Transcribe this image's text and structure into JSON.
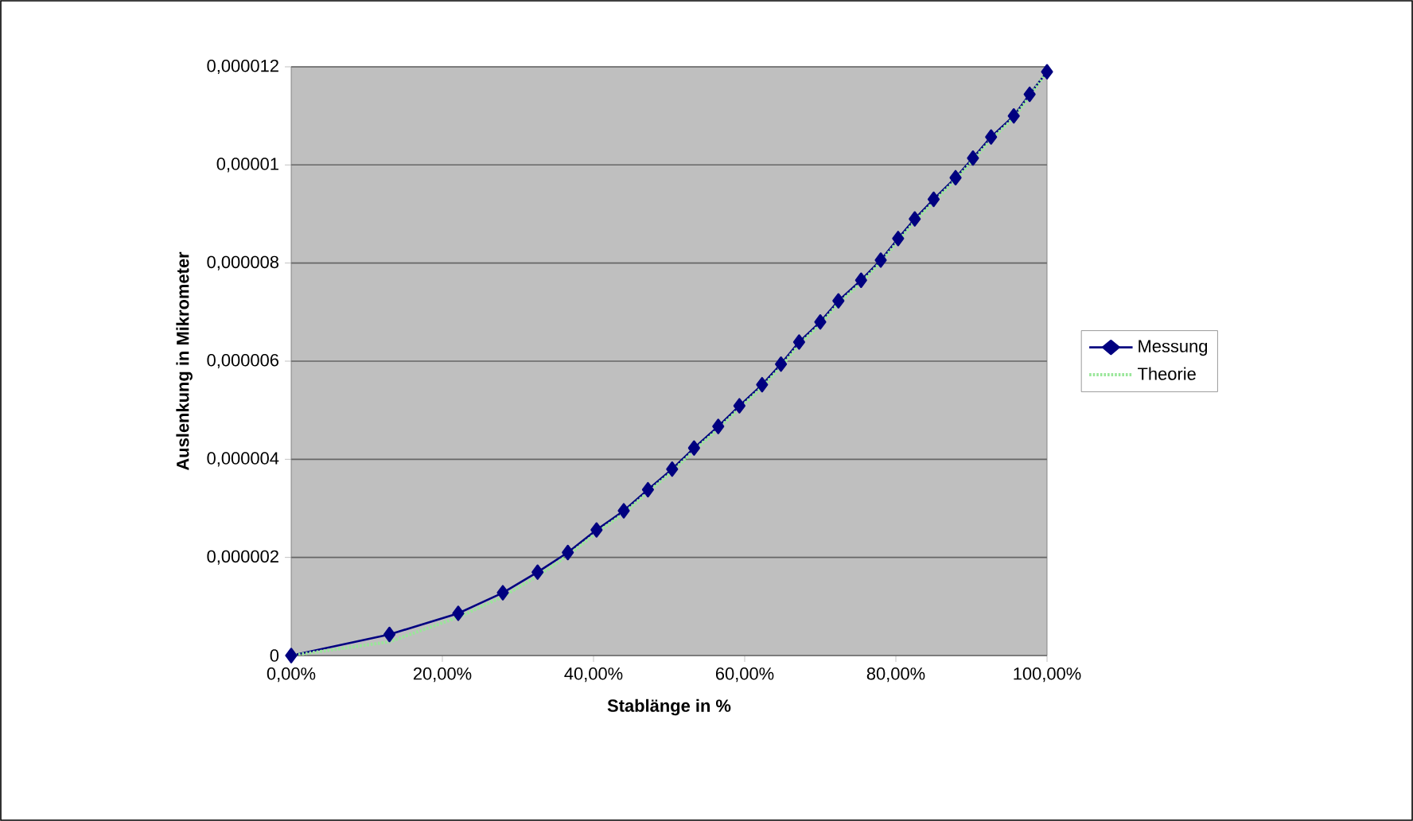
{
  "chart_data": {
    "type": "line",
    "xlabel": "Stablänge in %",
    "ylabel": "Auslenkung in Mikrometer",
    "x": [
      0,
      13,
      22.1,
      28,
      32.6,
      36.6,
      40.4,
      44,
      47.2,
      50.4,
      53.3,
      56.5,
      59.3,
      62.3,
      64.8,
      67.2,
      70,
      72.4,
      75.4,
      78,
      80.3,
      82.5,
      85,
      87.9,
      90.2,
      92.6,
      95.6,
      97.7,
      100
    ],
    "series": [
      {
        "name": "Messung",
        "color": "#000080",
        "marker": "diamond",
        "line_style": "solid",
        "values": [
          0,
          4.3e-07,
          8.6e-07,
          1.28e-06,
          1.7e-06,
          2.1e-06,
          2.56e-06,
          2.95e-06,
          3.38e-06,
          3.8e-06,
          4.23e-06,
          4.67e-06,
          5.09e-06,
          5.52e-06,
          5.94e-06,
          6.39e-06,
          6.8e-06,
          7.23e-06,
          7.65e-06,
          8.06e-06,
          8.5e-06,
          8.9e-06,
          9.3e-06,
          9.74e-06,
          1.014e-05,
          1.057e-05,
          1.1e-05,
          1.144e-05,
          1.19e-05
        ]
      },
      {
        "name": "Theorie",
        "color": "#99e699",
        "marker": "none",
        "line_style": "dotted",
        "values": [
          0,
          2.8e-07,
          7.8e-07,
          1.2e-06,
          1.62e-06,
          2.04e-06,
          2.5e-06,
          2.9e-06,
          3.33e-06,
          3.75e-06,
          4.18e-06,
          4.62e-06,
          5.04e-06,
          5.47e-06,
          5.89e-06,
          6.34e-06,
          6.75e-06,
          7.18e-06,
          7.6e-06,
          8.02e-06,
          8.45e-06,
          8.85e-06,
          9.25e-06,
          9.7e-06,
          1.01e-05,
          1.052e-05,
          1.096e-05,
          1.14e-05,
          1.19e-05
        ]
      }
    ],
    "xlim": [
      0,
      100
    ],
    "ylim": [
      0,
      1.2e-05
    ],
    "xticks": [
      {
        "value": 0,
        "label": "0,00%"
      },
      {
        "value": 20,
        "label": "20,00%"
      },
      {
        "value": 40,
        "label": "40,00%"
      },
      {
        "value": 60,
        "label": "60,00%"
      },
      {
        "value": 80,
        "label": "80,00%"
      },
      {
        "value": 100,
        "label": "100,00%"
      }
    ],
    "yticks": [
      0,
      {
        "value": 2e-06,
        "label": "0,000002"
      },
      {
        "value": 4e-06,
        "label": "0,000004"
      },
      {
        "value": 6e-06,
        "label": "0,000006"
      },
      {
        "value": 8e-06,
        "label": "0,000008"
      },
      {
        "value": 1e-05,
        "label": "0,00001"
      },
      {
        "value": 1.2e-05,
        "label": "0,000012"
      }
    ],
    "grid": "y",
    "legend": "right"
  }
}
